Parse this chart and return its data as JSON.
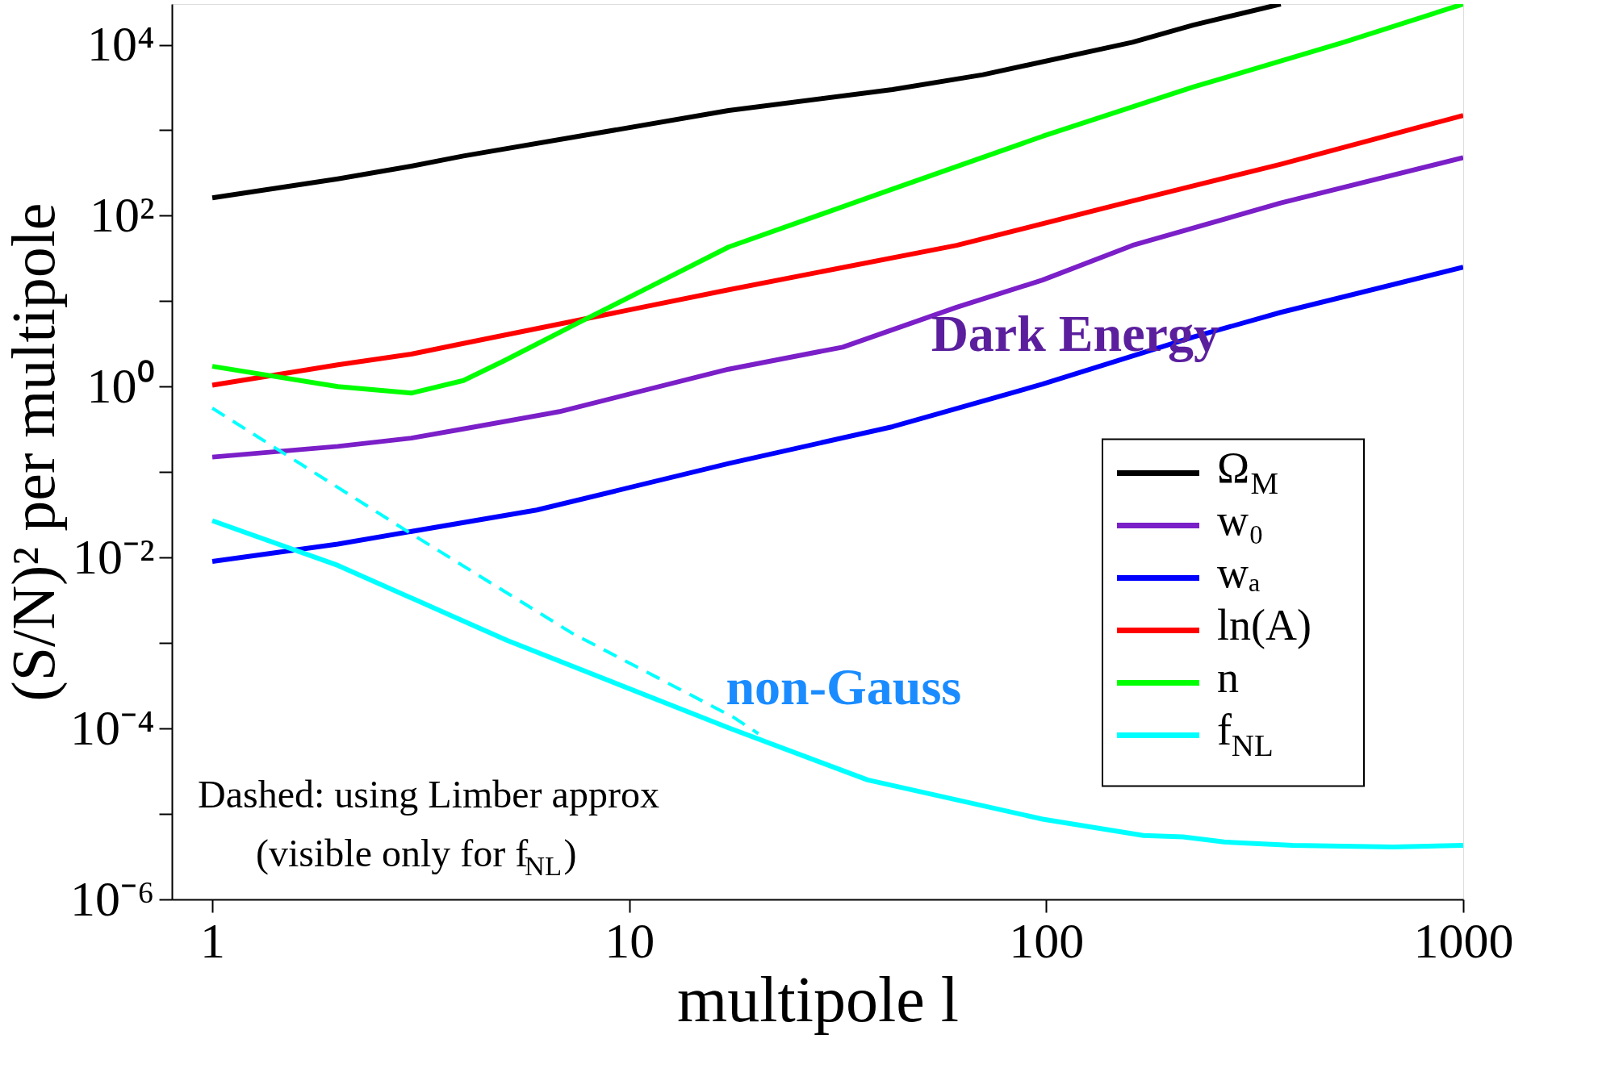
{
  "chart_data": {
    "type": "line",
    "xlabel": "multipole l",
    "ylabel": "(S/N)² per multipole",
    "log": "xy",
    "xlim": [
      0.8,
      1000
    ],
    "ylim": [
      1e-06,
      30000
    ],
    "xticks": [
      1,
      10,
      100,
      1000
    ],
    "yticks": [
      {
        "value": 1e-06,
        "label": "10⁻⁶"
      },
      {
        "value": 1e-05,
        "label": null
      },
      {
        "value": 0.0001,
        "label": "10⁻⁴"
      },
      {
        "value": 0.001,
        "label": null
      },
      {
        "value": 0.01,
        "label": "10⁻²"
      },
      {
        "value": 0.1,
        "label": null
      },
      {
        "value": 1,
        "label": "10⁰"
      },
      {
        "value": 10,
        "label": null
      },
      {
        "value": 100,
        "label": "10²"
      },
      {
        "value": 1000,
        "label": null
      },
      {
        "value": 10000,
        "label": "10⁴"
      }
    ],
    "grid": false,
    "legend": "right",
    "line_style": "solid",
    "marker": "none",
    "annotations": [
      "Dark Energy",
      "non-Gauss",
      "Dashed: using Limber approx",
      "(visible only for f$_{NL}$)"
    ],
    "series": [
      {
        "name": "Ω$_{M}$",
        "color": "#000000",
        "x": [
          1,
          2,
          3,
          4,
          17.3,
          42.8,
          70.5,
          161,
          225,
          365
        ],
        "values": [
          162,
          270,
          380,
          500,
          1700,
          3000,
          4470,
          10700,
          17000,
          30000
        ]
      },
      {
        "name": "w₀",
        "color": "#7b1fc8",
        "x": [
          1,
          2,
          3,
          4,
          6.8,
          17.3,
          32.5,
          61,
          98,
          161,
          365,
          1000
        ],
        "values": [
          0.15,
          0.2,
          0.25,
          0.32,
          0.51,
          1.6,
          2.9,
          8.5,
          17.7,
          45,
          141,
          478
        ]
      },
      {
        "name": "wₐ",
        "color": "#0000ff",
        "x": [
          1,
          2,
          6,
          17.3,
          42.8,
          98,
          225,
          365,
          1000
        ],
        "values": [
          0.009,
          0.0144,
          0.036,
          0.126,
          0.34,
          1.07,
          3.8,
          7.4,
          25
        ]
      },
      {
        "name": "ln(A)",
        "color": "#ff0000",
        "x": [
          1,
          2,
          3,
          4,
          17.3,
          61,
          161,
          365,
          1000
        ],
        "values": [
          1.04,
          1.8,
          2.4,
          3.2,
          13.6,
          45,
          149,
          400,
          1490
        ]
      },
      {
        "name": "n",
        "color": "#00ff00",
        "x": [
          1,
          2,
          3,
          4,
          5,
          7.55,
          11.1,
          17.3,
          42.8,
          98,
          225,
          517,
          1000
        ],
        "values": [
          1.73,
          1.0,
          0.84,
          1.18,
          2.0,
          5.6,
          14.4,
          43,
          205,
          850,
          3200,
          10700,
          30000
        ]
      },
      {
        "name": "f$_{NL}$",
        "color": "#00ffff",
        "x": [
          1,
          2,
          5.1,
          17.3,
          37.3,
          98,
          171,
          213,
          267,
          390,
          680,
          1000
        ],
        "values": [
          0.027,
          0.0081,
          0.00107,
          0.000102,
          2.5e-05,
          8.7e-06,
          5.6e-06,
          5.4e-06,
          4.7e-06,
          4.3e-06,
          4.1e-06,
          4.3e-06
        ]
      },
      {
        "color": "#00ffff",
        "line_style": "dashed",
        "x": [
          1,
          2.95,
          7.3,
          17.8,
          20.4
        ],
        "values": [
          0.56,
          0.02,
          0.0013,
          0.000135,
          8.7e-05
        ]
      }
    ]
  }
}
